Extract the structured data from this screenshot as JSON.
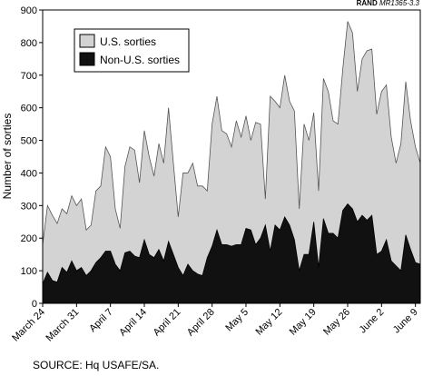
{
  "report_id": {
    "org": "RAND",
    "code": "MR1365-3.3"
  },
  "source_note": "SOURCE:  Hq USAFE/SA.",
  "chart_data": {
    "type": "area",
    "ylabel": "Number of sorties",
    "xlabel": "",
    "ylim": [
      0,
      900
    ],
    "y_ticks": [
      0,
      100,
      200,
      300,
      400,
      500,
      600,
      700,
      800,
      900
    ],
    "x_tick_labels": [
      "March 24",
      "March 31",
      "April 7",
      "April 14",
      "April 21",
      "April 28",
      "May 5",
      "May 12",
      "May 19",
      "May 26",
      "June 2",
      "June 9"
    ],
    "legend_position": "top-left",
    "series": [
      {
        "name": "U.S. sorties",
        "color": "#d3d3d3",
        "values": [
          180,
          300,
          270,
          245,
          290,
          275,
          330,
          300,
          320,
          225,
          240,
          345,
          360,
          480,
          450,
          290,
          230,
          420,
          480,
          470,
          370,
          530,
          450,
          390,
          490,
          430,
          600,
          430,
          265,
          400,
          400,
          430,
          360,
          360,
          345,
          550,
          635,
          530,
          520,
          480,
          560,
          510,
          575,
          500,
          555,
          550,
          320,
          635,
          620,
          600,
          700,
          620,
          590,
          290,
          550,
          500,
          585,
          345,
          690,
          650,
          560,
          550,
          720,
          865,
          830,
          650,
          750,
          775,
          780,
          580,
          650,
          670,
          510,
          430,
          490,
          680,
          560,
          480,
          430
        ]
      },
      {
        "name": "Non-U.S. sorties",
        "color": "#111111",
        "values": [
          60,
          95,
          70,
          65,
          110,
          95,
          130,
          100,
          110,
          85,
          100,
          125,
          140,
          160,
          160,
          120,
          100,
          155,
          160,
          145,
          140,
          195,
          150,
          140,
          165,
          130,
          190,
          150,
          110,
          85,
          120,
          100,
          90,
          85,
          140,
          175,
          225,
          180,
          180,
          175,
          180,
          180,
          230,
          225,
          180,
          200,
          240,
          160,
          240,
          225,
          265,
          240,
          195,
          100,
          150,
          150,
          250,
          110,
          260,
          215,
          215,
          200,
          285,
          305,
          290,
          250,
          270,
          255,
          270,
          150,
          160,
          195,
          130,
          115,
          100,
          210,
          165,
          125,
          120
        ]
      }
    ]
  }
}
